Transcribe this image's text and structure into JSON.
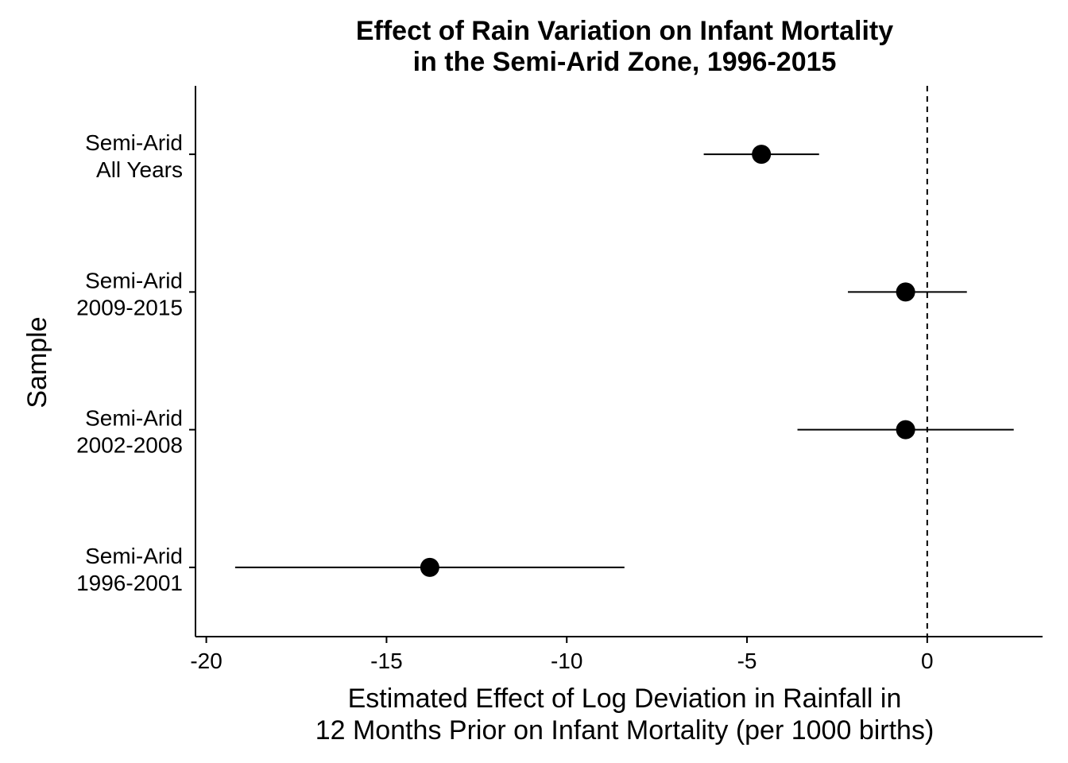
{
  "chart_data": {
    "type": "scatter",
    "title": [
      "Effect of Rain Variation on Infant Mortality",
      "in the Semi-Arid Zone, 1996-2015"
    ],
    "xlabel": [
      "Estimated Effect of Log Deviation in Rainfall in",
      "12 Months Prior on Infant Mortality (per 1000 births)"
    ],
    "ylabel": "Sample",
    "xlim": [
      -20.3,
      3.2
    ],
    "x_ticks": [
      -20,
      -15,
      -10,
      -5,
      0
    ],
    "x_tick_labels": [
      "-20",
      "-15",
      "-10",
      "-5",
      "0"
    ],
    "reference_line": {
      "x": 0,
      "style": "dashed"
    },
    "categories": [
      [
        "Semi-Arid",
        "All Years"
      ],
      [
        "Semi-Arid",
        "2009-2015"
      ],
      [
        "Semi-Arid",
        "2002-2008"
      ],
      [
        "Semi-Arid",
        "1996-2001"
      ]
    ],
    "points": [
      {
        "estimate": -4.6,
        "ci_low": -6.2,
        "ci_high": -3.0
      },
      {
        "estimate": -0.6,
        "ci_low": -2.2,
        "ci_high": 1.1
      },
      {
        "estimate": -0.6,
        "ci_low": -3.6,
        "ci_high": 2.4
      },
      {
        "estimate": -13.8,
        "ci_low": -19.2,
        "ci_high": -8.4
      }
    ],
    "grid": false,
    "legend": "none"
  }
}
